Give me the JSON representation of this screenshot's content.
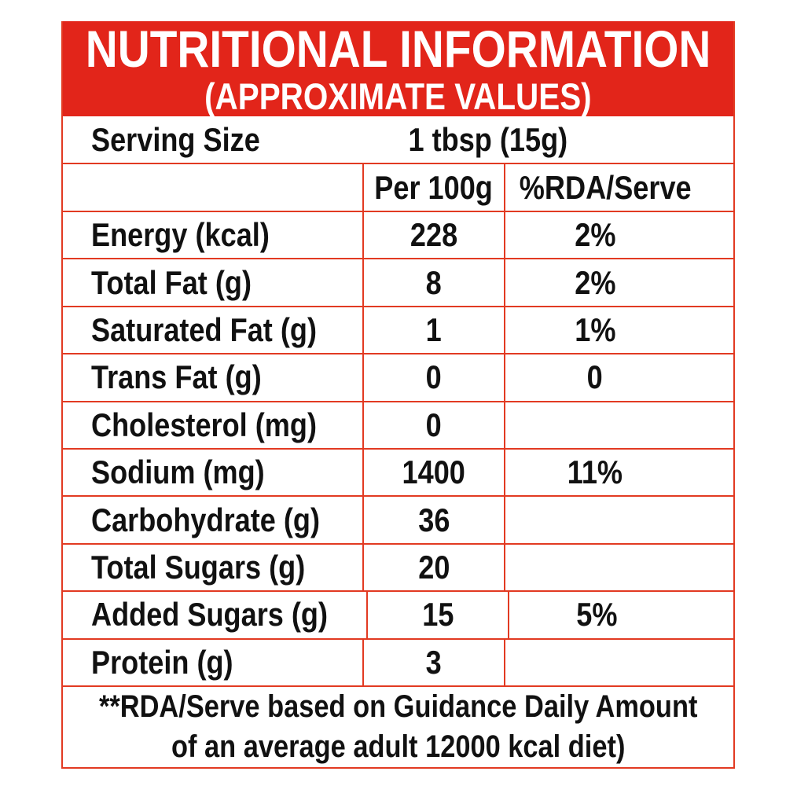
{
  "header": {
    "title": "NUTRITIONAL INFORMATION",
    "subtitle": "(APPROXIMATE VALUES)"
  },
  "serving": {
    "label": "Serving Size",
    "value": "1 tbsp (15g)"
  },
  "columns": {
    "per_100g": "Per 100g",
    "rda_serve": "%RDA/Serve"
  },
  "rows": [
    {
      "label": "Energy (kcal)",
      "per_100g": "228",
      "rda": "2%"
    },
    {
      "label": "Total Fat (g)",
      "per_100g": "8",
      "rda": "2%"
    },
    {
      "label": "Saturated Fat (g)",
      "per_100g": "1",
      "rda": "1%"
    },
    {
      "label": "Trans Fat (g)",
      "per_100g": "0",
      "rda": "0"
    },
    {
      "label": "Cholesterol (mg)",
      "per_100g": "0",
      "rda": ""
    },
    {
      "label": "Sodium (mg)",
      "per_100g": "1400",
      "rda": "11%"
    },
    {
      "label": "Carbohydrate (g)",
      "per_100g": "36",
      "rda": ""
    },
    {
      "label": "Total Sugars (g)",
      "per_100g": "20",
      "rda": ""
    },
    {
      "label": "Added Sugars (g)",
      "per_100g": "15",
      "rda": "5%"
    },
    {
      "label": "Protein (g)",
      "per_100g": "3",
      "rda": ""
    }
  ],
  "footnote": {
    "line1": "**RDA/Serve based on Guidance Daily Amount",
    "line2": "of an average adult 12000 kcal diet)"
  },
  "colors": {
    "accent_red": "#e2251a",
    "border_red": "#e23a22",
    "text": "#111111"
  }
}
